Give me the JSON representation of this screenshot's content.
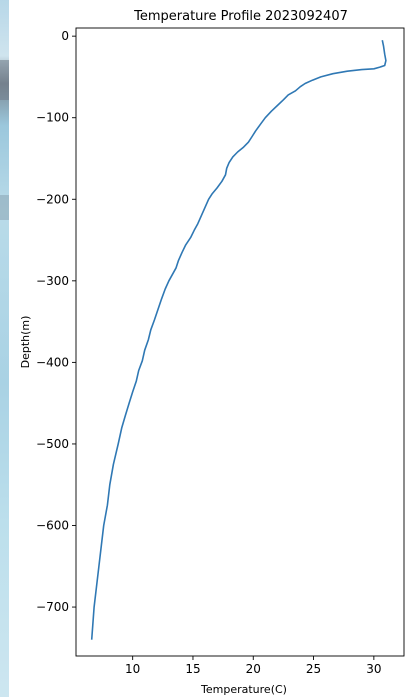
{
  "chart_data": {
    "type": "line",
    "title": "Temperature Profile 2023092407",
    "xlabel": "Temperature(C)",
    "ylabel": "Depth(m)",
    "xlim": [
      5.3,
      32.5
    ],
    "ylim": [
      -760,
      10
    ],
    "xticks": [
      10,
      15,
      20,
      25,
      30
    ],
    "yticks": [
      0,
      -100,
      -200,
      -300,
      -400,
      -500,
      -600,
      -700
    ],
    "ytick_labels": [
      "0",
      "−100",
      "−200",
      "−300",
      "−400",
      "−500",
      "−600",
      "−700"
    ],
    "line_color": "#2f78b4",
    "grid": false,
    "series": [
      {
        "x": [
          30.7,
          30.8,
          30.9,
          31.0,
          30.9,
          30.5,
          30.0,
          29.0,
          27.8,
          26.6,
          25.6,
          24.9,
          24.3,
          23.9,
          23.5,
          22.9,
          22.5,
          22.0,
          21.5,
          21.0,
          20.6,
          20.2,
          19.9,
          19.6,
          19.2,
          18.7,
          18.3,
          18.0,
          17.8,
          17.7,
          17.4,
          17.0,
          16.6,
          16.3,
          16.0,
          15.7,
          15.4,
          15.1,
          14.8,
          14.4,
          14.1,
          13.8,
          13.6,
          13.3,
          13.0,
          12.7,
          12.4,
          12.1,
          11.8,
          11.5,
          11.3,
          11.0,
          10.8,
          10.5,
          10.3,
          10.0,
          9.7,
          9.4,
          9.1,
          8.8,
          8.4,
          8.1,
          7.9,
          7.6,
          7.4,
          7.2,
          7.0,
          6.8,
          6.7,
          6.6
        ],
        "y": [
          -5,
          -12,
          -22,
          -30,
          -36,
          -38,
          -40,
          -41,
          -43,
          -46,
          -50,
          -54,
          -58,
          -62,
          -67,
          -72,
          -78,
          -85,
          -92,
          -100,
          -108,
          -116,
          -123,
          -130,
          -136,
          -142,
          -148,
          -155,
          -162,
          -170,
          -178,
          -186,
          -193,
          -200,
          -210,
          -220,
          -230,
          -238,
          -247,
          -256,
          -265,
          -275,
          -284,
          -292,
          -300,
          -310,
          -322,
          -335,
          -348,
          -360,
          -372,
          -385,
          -398,
          -410,
          -423,
          -436,
          -450,
          -465,
          -480,
          -500,
          -525,
          -550,
          -575,
          -600,
          -625,
          -650,
          -675,
          -700,
          -720,
          -740
        ]
      }
    ]
  }
}
